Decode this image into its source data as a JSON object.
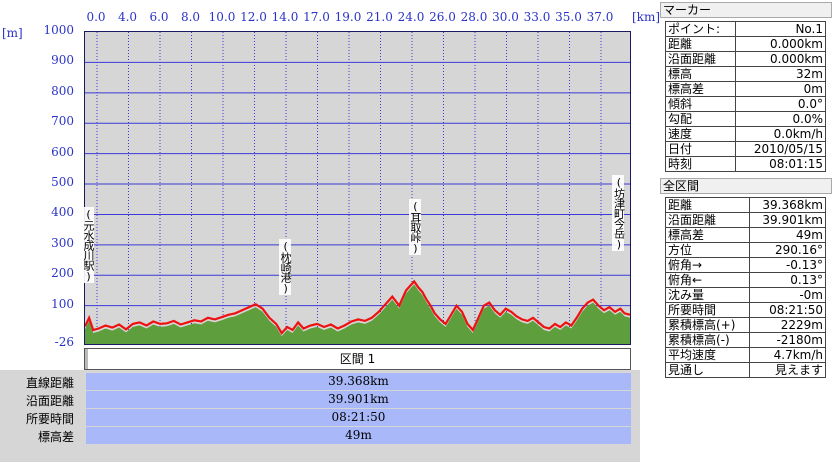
{
  "chart_data": {
    "type": "area",
    "x_ticks": [
      "0.0",
      "4.0",
      "6.0",
      "8.0",
      "10.0",
      "12.0",
      "14.0",
      "17.0",
      "19.0",
      "21.0",
      "24.0",
      "26.0",
      "28.0",
      "30.0",
      "33.0",
      "35.0",
      "37.0"
    ],
    "y_ticks": [
      "1000",
      "900",
      "800",
      "700",
      "600",
      "500",
      "400",
      "300",
      "200",
      "100",
      "-26"
    ],
    "x_unit": "[km]",
    "y_unit": "[m]",
    "ylim": [
      -26,
      1000
    ],
    "xlim": [
      0,
      39.9
    ],
    "annotations": [
      {
        "label": "(元水成川駅)",
        "x": 0.0
      },
      {
        "label": "(枕崎港)",
        "x": 14.8
      },
      {
        "label": "(耳取峠)",
        "x": 24.3
      },
      {
        "label": "(坊津町今岳)",
        "x": 39.2
      }
    ],
    "series": [
      {
        "color": "#ee1111",
        "x": [
          0.0,
          0.3,
          0.6,
          1.0,
          1.5,
          2.0,
          2.5,
          3.0,
          3.5,
          4.0,
          4.5,
          5.0,
          5.5,
          6.0,
          6.5,
          7.0,
          7.5,
          8.0,
          8.5,
          9.0,
          9.5,
          10.0,
          10.5,
          11.0,
          11.5,
          12.0,
          12.5,
          13.0,
          13.5,
          14.0,
          14.4,
          14.8,
          15.2,
          15.6,
          16.0,
          16.5,
          17.0,
          17.5,
          18.0,
          18.5,
          19.0,
          19.5,
          20.0,
          20.5,
          21.0,
          21.5,
          22.0,
          22.5,
          23.0,
          23.5,
          23.8,
          24.1,
          24.4,
          24.7,
          25.0,
          25.3,
          25.6,
          26.0,
          26.4,
          26.8,
          27.2,
          27.6,
          28.0,
          28.4,
          28.8,
          29.2,
          29.6,
          30.0,
          30.4,
          30.8,
          31.2,
          31.6,
          32.0,
          32.4,
          32.8,
          33.2,
          33.6,
          34.0,
          34.4,
          34.8,
          35.2,
          35.6,
          36.0,
          36.4,
          36.8,
          37.2,
          37.6,
          38.0,
          38.4,
          38.8,
          39.2,
          39.5,
          39.9
        ],
        "y": [
          32,
          60,
          20,
          25,
          35,
          28,
          38,
          22,
          40,
          45,
          35,
          48,
          40,
          42,
          50,
          38,
          45,
          52,
          48,
          60,
          55,
          62,
          70,
          75,
          85,
          95,
          105,
          90,
          60,
          40,
          10,
          30,
          20,
          45,
          25,
          35,
          40,
          30,
          38,
          25,
          35,
          48,
          55,
          50,
          60,
          80,
          105,
          130,
          100,
          150,
          165,
          180,
          160,
          145,
          120,
          100,
          75,
          55,
          40,
          70,
          100,
          80,
          40,
          20,
          60,
          100,
          110,
          85,
          70,
          90,
          80,
          65,
          55,
          50,
          60,
          45,
          30,
          25,
          40,
          30,
          45,
          35,
          60,
          90,
          110,
          120,
          100,
          85,
          95,
          80,
          90,
          75,
          70
        ]
      }
    ]
  },
  "marker_panel": {
    "title": "マーカー",
    "rows": [
      {
        "label": "ポイント:",
        "value": "No.1"
      },
      {
        "label": "距離",
        "value": "0.000km"
      },
      {
        "label": "沿面距離",
        "value": "0.000km"
      },
      {
        "label": "標高",
        "value": "32m"
      },
      {
        "label": "標高差",
        "value": "0m"
      },
      {
        "label": "傾斜",
        "value": "0.0°"
      },
      {
        "label": "勾配",
        "value": "0.0%"
      },
      {
        "label": "速度",
        "value": "0.0km/h"
      },
      {
        "label": "日付",
        "value": "2010/05/15"
      },
      {
        "label": "時刻",
        "value": "08:01:15"
      }
    ]
  },
  "section_panel": {
    "title": "全区間",
    "rows": [
      {
        "label": "距離",
        "value": "39.368km"
      },
      {
        "label": "沿面距離",
        "value": "39.901km"
      },
      {
        "label": "標高差",
        "value": "49m"
      },
      {
        "label": "方位",
        "value": "290.16°"
      },
      {
        "label": "俯角→",
        "value": "-0.13°"
      },
      {
        "label": "俯角←",
        "value": "0.13°"
      },
      {
        "label": "沈み量",
        "value": "-0m"
      },
      {
        "label": "所要時間",
        "value": "08:21:50"
      },
      {
        "label": "累積標高(+)",
        "value": "2229m"
      },
      {
        "label": "累積標高(-)",
        "value": "-2180m"
      },
      {
        "label": "平均速度",
        "value": "4.7km/h"
      },
      {
        "label": "見通し",
        "value": "見えます"
      }
    ]
  },
  "bottom": {
    "section_label": "区間 1",
    "rows": [
      {
        "label": "直線距離",
        "value": "39.368km"
      },
      {
        "label": "沿面距離",
        "value": "39.901km"
      },
      {
        "label": "所要時間",
        "value": "08:21:50"
      },
      {
        "label": "標高差",
        "value": "49m"
      }
    ]
  },
  "colors": {
    "terrain_fill": "#5f9e3c",
    "profile_line": "#ee1111",
    "grid": "#3a3ad8",
    "axis_text": "#2a33c8",
    "value_bar": "#a8b8f8"
  }
}
